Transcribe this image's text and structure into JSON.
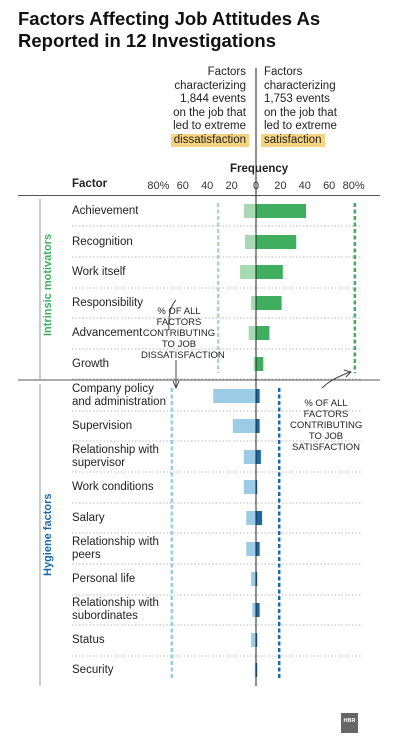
{
  "title": "Factors Affecting Job Attitudes As Reported in 12 Investigations",
  "header_left": {
    "lines": [
      "Factors",
      "characterizing",
      "1,844 events",
      "on the job that",
      "led to extreme"
    ],
    "highlight": "dissatisfaction"
  },
  "header_right": {
    "lines": [
      "Factors",
      "characterizing",
      "1,753 events",
      "on the job that",
      "led to extreme"
    ],
    "highlight": "satisfaction"
  },
  "note_dissatisfaction": "% OF ALL FACTORS CONTRIBUTING TO JOB DISSATISFACTION",
  "note_satisfaction": "% OF ALL FACTORS CONTRIBUTING TO JOB SATISFACTION",
  "logo_text": "HBR",
  "chart_data": {
    "type": "bar",
    "orientation": "horizontal-diverging",
    "xlabel": "Frequency",
    "ylabel": "Factor",
    "x_ticks": [
      "80%",
      "60",
      "40",
      "20",
      "0",
      "20",
      "40",
      "60",
      "80%"
    ],
    "xlim": [
      -80,
      80
    ],
    "groups": [
      {
        "name": "Intrinsic motivators",
        "color": "#3fae5e",
        "light_color": "#a7d9b4",
        "total_dissatisfaction": 31,
        "total_satisfaction": 81
      },
      {
        "name": "Hygiene factors",
        "color": "#1b6aa8",
        "light_color": "#9ccbe6",
        "total_dissatisfaction": 69,
        "total_satisfaction": 19
      }
    ],
    "categories": [
      "Achievement",
      "Recognition",
      "Work itself",
      "Responsibility",
      "Advancement",
      "Growth",
      "Company policy and administration",
      "Supervision",
      "Relationship with supervisor",
      "Work conditions",
      "Salary",
      "Relationship with peers",
      "Personal life",
      "Relationship with subordinates",
      "Status",
      "Security"
    ],
    "category_lines": [
      [
        "Achievement"
      ],
      [
        "Recognition"
      ],
      [
        "Work itself"
      ],
      [
        "Responsibility"
      ],
      [
        "Advancement"
      ],
      [
        "Growth"
      ],
      [
        "Company policy",
        "and administration"
      ],
      [
        "Supervision"
      ],
      [
        "Relationship with",
        "supervisor"
      ],
      [
        "Work conditions"
      ],
      [
        "Salary"
      ],
      [
        "Relationship with",
        "peers"
      ],
      [
        "Personal life"
      ],
      [
        "Relationship with",
        "subordinates"
      ],
      [
        "Status"
      ],
      [
        "Security"
      ]
    ],
    "category_group": [
      0,
      0,
      0,
      0,
      0,
      0,
      1,
      1,
      1,
      1,
      1,
      1,
      1,
      1,
      1,
      1
    ],
    "series": [
      {
        "name": "dissatisfaction",
        "values": [
          10,
          9,
          13,
          4,
          6,
          2,
          35,
          19,
          10,
          10,
          8,
          8,
          4,
          3,
          4,
          1
        ]
      },
      {
        "name": "satisfaction",
        "values": [
          41,
          33,
          22,
          21,
          11,
          6,
          3,
          3,
          4,
          1,
          5,
          3,
          1,
          3,
          1,
          1
        ]
      }
    ]
  }
}
